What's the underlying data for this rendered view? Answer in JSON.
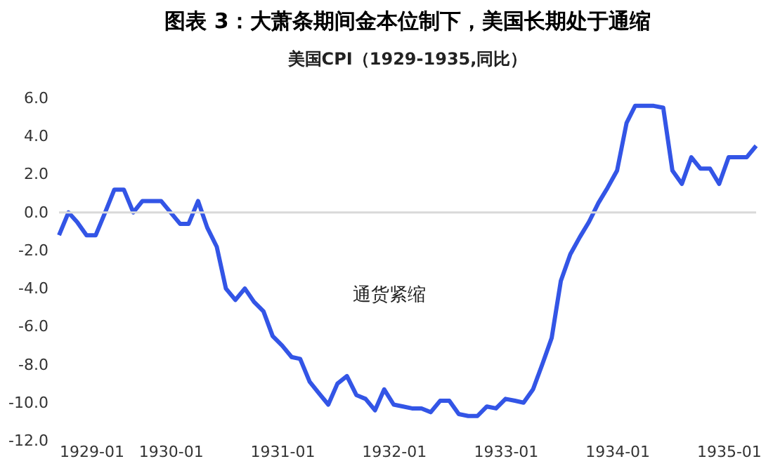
{
  "chart_data": {
    "type": "line",
    "title": "图表 3：大萧条期间金本位制下，美国长期处于通缩",
    "subtitle": "美国CPI（1929-1935,同比）",
    "x": [
      "1929-01",
      "1929-02",
      "1929-03",
      "1929-04",
      "1929-05",
      "1929-06",
      "1929-07",
      "1929-08",
      "1929-09",
      "1929-10",
      "1929-11",
      "1929-12",
      "1930-01",
      "1930-02",
      "1930-03",
      "1930-04",
      "1930-05",
      "1930-06",
      "1930-07",
      "1930-08",
      "1930-09",
      "1930-10",
      "1930-11",
      "1930-12",
      "1931-01",
      "1931-02",
      "1931-03",
      "1931-04",
      "1931-05",
      "1931-06",
      "1931-07",
      "1931-08",
      "1931-09",
      "1931-10",
      "1931-11",
      "1931-12",
      "1932-01",
      "1932-02",
      "1932-03",
      "1932-04",
      "1932-05",
      "1932-06",
      "1932-07",
      "1932-08",
      "1932-09",
      "1932-10",
      "1932-11",
      "1932-12",
      "1933-01",
      "1933-02",
      "1933-03",
      "1933-04",
      "1933-05",
      "1933-06",
      "1933-07",
      "1933-08",
      "1933-09",
      "1933-10",
      "1933-11",
      "1933-12",
      "1934-01",
      "1934-02",
      "1934-03",
      "1934-04",
      "1934-05",
      "1934-06",
      "1934-07",
      "1934-08",
      "1934-09",
      "1934-10",
      "1934-11",
      "1934-12",
      "1935-01",
      "1935-02",
      "1935-03",
      "1935-04"
    ],
    "series": [
      {
        "color": "#3355e6",
        "values": [
          -1.2,
          0.0,
          -0.5,
          -1.2,
          -1.2,
          0.0,
          1.2,
          1.2,
          0.0,
          0.6,
          0.6,
          0.6,
          0.0,
          -0.6,
          -0.6,
          0.6,
          -0.8,
          -1.8,
          -4.0,
          -4.6,
          -4.0,
          -4.7,
          -5.2,
          -6.5,
          -7.0,
          -7.6,
          -7.7,
          -8.9,
          -9.5,
          -10.1,
          -9.0,
          -8.6,
          -9.6,
          -9.8,
          -10.4,
          -9.3,
          -10.1,
          -10.2,
          -10.3,
          -10.3,
          -10.5,
          -9.9,
          -9.9,
          -10.6,
          -10.7,
          -10.7,
          -10.2,
          -10.3,
          -9.8,
          -9.9,
          -10.0,
          -9.3,
          -8.0,
          -6.6,
          -3.6,
          -2.2,
          -1.3,
          -0.5,
          0.5,
          1.3,
          2.2,
          4.7,
          5.6,
          5.6,
          5.6,
          5.5,
          2.2,
          1.5,
          2.9,
          2.3,
          2.3,
          1.5,
          2.9,
          2.9,
          2.9,
          3.5
        ]
      }
    ],
    "xlim": [
      "1929-01",
      "1935-04"
    ],
    "xticks": [
      "1929-01",
      "1930-01",
      "1931-01",
      "1932-01",
      "1933-01",
      "1934-01",
      "1935-01"
    ],
    "ylim": [
      -12,
      6
    ],
    "yticks": [
      {
        "value": -12,
        "label": "-12.0"
      },
      {
        "value": -10,
        "label": "-10.0"
      },
      {
        "value": -8,
        "label": "-8.0"
      },
      {
        "value": -6,
        "label": "-6.0"
      },
      {
        "value": -4,
        "label": "-4.0"
      },
      {
        "value": -2,
        "label": "-2.0"
      },
      {
        "value": 0,
        "label": "0.0"
      },
      {
        "value": 2,
        "label": "2.0"
      },
      {
        "value": 4,
        "label": "4.0"
      },
      {
        "value": 6,
        "label": "6.0"
      }
    ],
    "ref_lines": [
      {
        "axis": "y",
        "value": 0,
        "color": "#d9d9d9"
      }
    ],
    "annotations": [
      "通货紧缩"
    ],
    "grid": false,
    "marker": "none",
    "line_style": "solid"
  }
}
